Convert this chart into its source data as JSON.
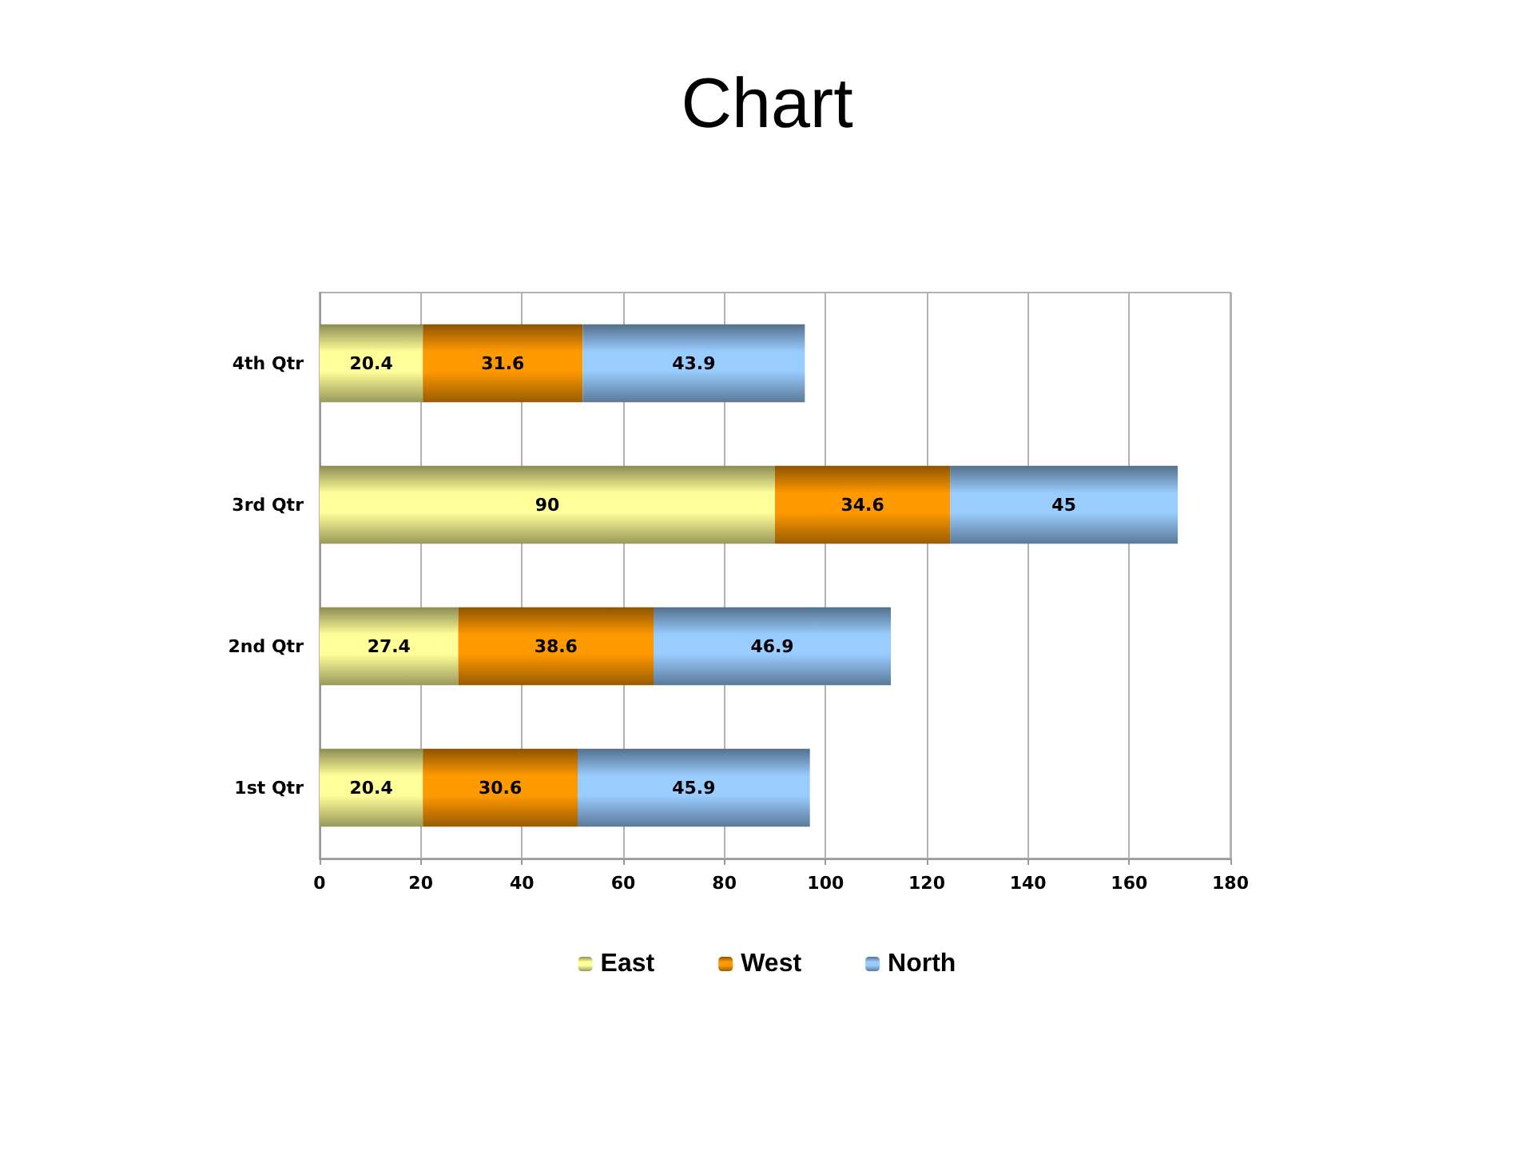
{
  "chart_data": {
    "type": "bar",
    "orientation": "horizontal",
    "stacked": true,
    "title": "Chart",
    "categories": [
      "4th Qtr",
      "3rd Qtr",
      "2nd Qtr",
      "1st Qtr"
    ],
    "series": [
      {
        "name": "East",
        "color": "#ffff99",
        "values": [
          20.4,
          90,
          27.4,
          20.4
        ]
      },
      {
        "name": "West",
        "color": "#ff9900",
        "values": [
          31.6,
          34.6,
          38.6,
          30.6
        ]
      },
      {
        "name": "North",
        "color": "#99ccff",
        "values": [
          43.9,
          45,
          46.9,
          45.9
        ]
      }
    ],
    "xlim": [
      0,
      180
    ],
    "xticks": [
      0,
      20,
      40,
      60,
      80,
      100,
      120,
      140,
      160,
      180
    ],
    "grid": "x",
    "legend": "bottom",
    "data_labels": true
  }
}
